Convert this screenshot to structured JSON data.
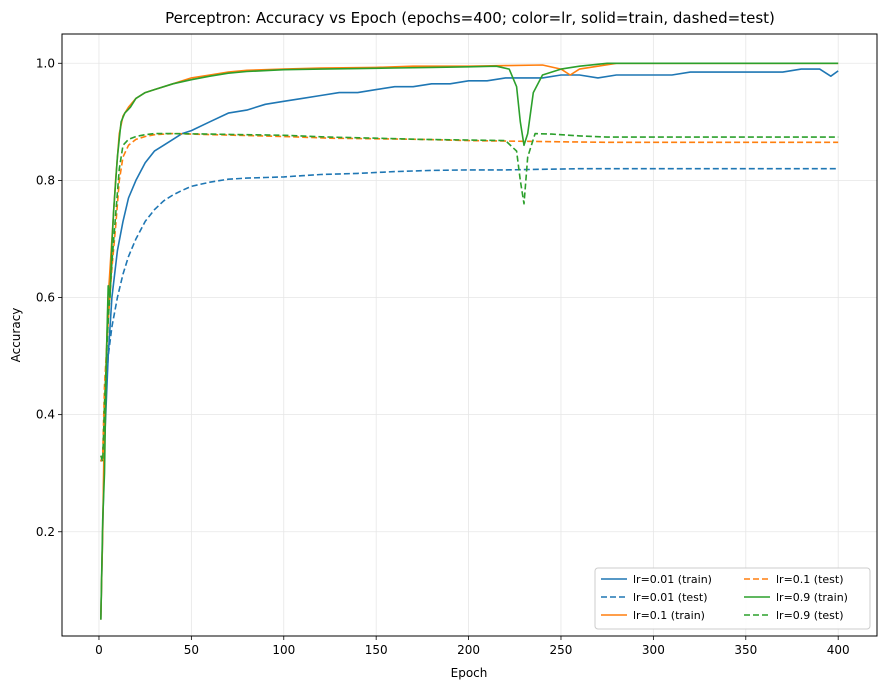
{
  "chart_data": {
    "type": "line",
    "title": "Perceptron: Accuracy vs Epoch (epochs=400; color=lr, solid=train, dashed=test)",
    "xlabel": "Epoch",
    "ylabel": "Accuracy",
    "xlim": [
      -20,
      421
    ],
    "ylim": [
      0.022,
      1.05
    ],
    "xticks": [
      0,
      50,
      100,
      150,
      200,
      250,
      300,
      350,
      400
    ],
    "yticks": [
      0.2,
      0.4,
      0.6,
      0.8,
      1.0
    ],
    "xtick_labels": [
      "0",
      "50",
      "100",
      "150",
      "200",
      "250",
      "300",
      "350",
      "400"
    ],
    "ytick_labels": [
      "0.2",
      "0.4",
      "0.6",
      "0.8",
      "1.0"
    ],
    "grid": true,
    "legend_position": "lower-right",
    "legend_columns": 2,
    "series": [
      {
        "name": "lr=0.01 (train)",
        "color": "#1f77b4",
        "dash": "solid",
        "points": [
          [
            1,
            0.05
          ],
          [
            2,
            0.2
          ],
          [
            3,
            0.35
          ],
          [
            5,
            0.5
          ],
          [
            7,
            0.6
          ],
          [
            10,
            0.68
          ],
          [
            13,
            0.73
          ],
          [
            16,
            0.77
          ],
          [
            20,
            0.8
          ],
          [
            25,
            0.83
          ],
          [
            30,
            0.85
          ],
          [
            35,
            0.86
          ],
          [
            40,
            0.87
          ],
          [
            45,
            0.88
          ],
          [
            50,
            0.885
          ],
          [
            60,
            0.9
          ],
          [
            70,
            0.915
          ],
          [
            80,
            0.92
          ],
          [
            90,
            0.93
          ],
          [
            100,
            0.935
          ],
          [
            110,
            0.94
          ],
          [
            120,
            0.945
          ],
          [
            130,
            0.95
          ],
          [
            140,
            0.95
          ],
          [
            150,
            0.955
          ],
          [
            160,
            0.96
          ],
          [
            170,
            0.96
          ],
          [
            180,
            0.965
          ],
          [
            190,
            0.965
          ],
          [
            200,
            0.97
          ],
          [
            210,
            0.97
          ],
          [
            220,
            0.975
          ],
          [
            230,
            0.975
          ],
          [
            240,
            0.975
          ],
          [
            250,
            0.98
          ],
          [
            260,
            0.98
          ],
          [
            270,
            0.975
          ],
          [
            280,
            0.98
          ],
          [
            290,
            0.98
          ],
          [
            300,
            0.98
          ],
          [
            310,
            0.98
          ],
          [
            320,
            0.985
          ],
          [
            330,
            0.985
          ],
          [
            340,
            0.985
          ],
          [
            350,
            0.985
          ],
          [
            360,
            0.985
          ],
          [
            370,
            0.985
          ],
          [
            380,
            0.99
          ],
          [
            390,
            0.99
          ],
          [
            396,
            0.978
          ],
          [
            400,
            0.987
          ]
        ]
      },
      {
        "name": "lr=0.01 (test)",
        "color": "#1f77b4",
        "dash": "dashed",
        "points": [
          [
            1,
            0.32
          ],
          [
            2,
            0.33
          ],
          [
            3,
            0.4
          ],
          [
            5,
            0.5
          ],
          [
            7,
            0.55
          ],
          [
            10,
            0.6
          ],
          [
            13,
            0.64
          ],
          [
            16,
            0.67
          ],
          [
            20,
            0.7
          ],
          [
            25,
            0.73
          ],
          [
            30,
            0.75
          ],
          [
            35,
            0.765
          ],
          [
            40,
            0.775
          ],
          [
            45,
            0.783
          ],
          [
            50,
            0.79
          ],
          [
            60,
            0.797
          ],
          [
            70,
            0.802
          ],
          [
            80,
            0.804
          ],
          [
            90,
            0.805
          ],
          [
            100,
            0.806
          ],
          [
            110,
            0.808
          ],
          [
            120,
            0.81
          ],
          [
            140,
            0.812
          ],
          [
            160,
            0.815
          ],
          [
            180,
            0.817
          ],
          [
            200,
            0.818
          ],
          [
            220,
            0.818
          ],
          [
            240,
            0.819
          ],
          [
            260,
            0.82
          ],
          [
            280,
            0.82
          ],
          [
            300,
            0.82
          ],
          [
            320,
            0.82
          ],
          [
            340,
            0.82
          ],
          [
            360,
            0.82
          ],
          [
            380,
            0.82
          ],
          [
            400,
            0.82
          ]
        ]
      },
      {
        "name": "lr=0.1 (train)",
        "color": "#ff7f0e",
        "dash": "solid",
        "points": [
          [
            1,
            0.05
          ],
          [
            2,
            0.2
          ],
          [
            3,
            0.4
          ],
          [
            5,
            0.6
          ],
          [
            7,
            0.7
          ],
          [
            9,
            0.8
          ],
          [
            11,
            0.88
          ],
          [
            13,
            0.91
          ],
          [
            16,
            0.925
          ],
          [
            20,
            0.94
          ],
          [
            25,
            0.95
          ],
          [
            30,
            0.955
          ],
          [
            40,
            0.965
          ],
          [
            50,
            0.975
          ],
          [
            60,
            0.98
          ],
          [
            70,
            0.985
          ],
          [
            80,
            0.988
          ],
          [
            100,
            0.99
          ],
          [
            120,
            0.992
          ],
          [
            150,
            0.993
          ],
          [
            170,
            0.995
          ],
          [
            200,
            0.995
          ],
          [
            220,
            0.996
          ],
          [
            240,
            0.997
          ],
          [
            250,
            0.99
          ],
          [
            255,
            0.98
          ],
          [
            260,
            0.99
          ],
          [
            270,
            0.995
          ],
          [
            280,
            1.0
          ],
          [
            300,
            1.0
          ],
          [
            350,
            1.0
          ],
          [
            400,
            1.0
          ]
        ]
      },
      {
        "name": "lr=0.1 (test)",
        "color": "#ff7f0e",
        "dash": "dashed",
        "points": [
          [
            1,
            0.32
          ],
          [
            2,
            0.33
          ],
          [
            3,
            0.45
          ],
          [
            5,
            0.56
          ],
          [
            7,
            0.65
          ],
          [
            9,
            0.72
          ],
          [
            11,
            0.8
          ],
          [
            13,
            0.84
          ],
          [
            16,
            0.86
          ],
          [
            20,
            0.87
          ],
          [
            25,
            0.875
          ],
          [
            30,
            0.878
          ],
          [
            40,
            0.88
          ],
          [
            50,
            0.879
          ],
          [
            75,
            0.877
          ],
          [
            100,
            0.875
          ],
          [
            125,
            0.872
          ],
          [
            150,
            0.871
          ],
          [
            175,
            0.87
          ],
          [
            200,
            0.868
          ],
          [
            225,
            0.867
          ],
          [
            250,
            0.866
          ],
          [
            275,
            0.865
          ],
          [
            300,
            0.865
          ],
          [
            350,
            0.865
          ],
          [
            400,
            0.865
          ]
        ]
      },
      {
        "name": "lr=0.9 (train)",
        "color": "#2ca02c",
        "dash": "solid",
        "points": [
          [
            1,
            0.05
          ],
          [
            2,
            0.22
          ],
          [
            3,
            0.3
          ],
          [
            4,
            0.5
          ],
          [
            5,
            0.62
          ],
          [
            6,
            0.6
          ],
          [
            7,
            0.69
          ],
          [
            8,
            0.75
          ],
          [
            10,
            0.84
          ],
          [
            12,
            0.9
          ],
          [
            14,
            0.915
          ],
          [
            17,
            0.925
          ],
          [
            20,
            0.94
          ],
          [
            25,
            0.95
          ],
          [
            30,
            0.955
          ],
          [
            40,
            0.965
          ],
          [
            50,
            0.972
          ],
          [
            60,
            0.978
          ],
          [
            70,
            0.983
          ],
          [
            80,
            0.986
          ],
          [
            100,
            0.989
          ],
          [
            120,
            0.99
          ],
          [
            140,
            0.991
          ],
          [
            160,
            0.992
          ],
          [
            180,
            0.993
          ],
          [
            200,
            0.994
          ],
          [
            215,
            0.995
          ],
          [
            222,
            0.99
          ],
          [
            226,
            0.96
          ],
          [
            228,
            0.9
          ],
          [
            230,
            0.86
          ],
          [
            232,
            0.88
          ],
          [
            235,
            0.95
          ],
          [
            240,
            0.98
          ],
          [
            250,
            0.99
          ],
          [
            260,
            0.995
          ],
          [
            275,
            1.0
          ],
          [
            300,
            1.0
          ],
          [
            350,
            1.0
          ],
          [
            400,
            1.0
          ]
        ]
      },
      {
        "name": "lr=0.9 (test)",
        "color": "#2ca02c",
        "dash": "dashed",
        "points": [
          [
            1,
            0.33
          ],
          [
            2,
            0.32
          ],
          [
            3,
            0.42
          ],
          [
            5,
            0.56
          ],
          [
            7,
            0.66
          ],
          [
            9,
            0.74
          ],
          [
            11,
            0.82
          ],
          [
            13,
            0.86
          ],
          [
            16,
            0.87
          ],
          [
            20,
            0.875
          ],
          [
            25,
            0.878
          ],
          [
            30,
            0.88
          ],
          [
            40,
            0.88
          ],
          [
            60,
            0.879
          ],
          [
            80,
            0.878
          ],
          [
            100,
            0.877
          ],
          [
            125,
            0.874
          ],
          [
            150,
            0.872
          ],
          [
            175,
            0.87
          ],
          [
            200,
            0.869
          ],
          [
            220,
            0.868
          ],
          [
            226,
            0.85
          ],
          [
            228,
            0.8
          ],
          [
            230,
            0.76
          ],
          [
            232,
            0.84
          ],
          [
            236,
            0.88
          ],
          [
            245,
            0.879
          ],
          [
            260,
            0.876
          ],
          [
            275,
            0.874
          ],
          [
            300,
            0.874
          ],
          [
            350,
            0.874
          ],
          [
            400,
            0.874
          ]
        ]
      }
    ]
  }
}
